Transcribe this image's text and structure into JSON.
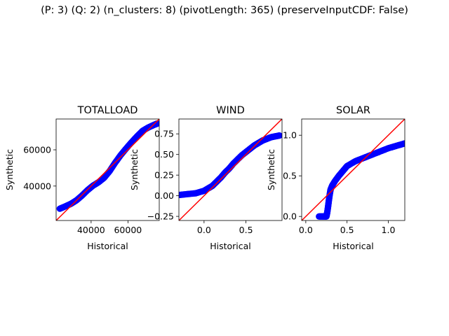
{
  "suptitle": "(P: 3) (Q: 2) (n_clusters: 8) (pivotLength: 365) (preserveInputCDF: False)",
  "colors": {
    "points": "#0000ff",
    "reference_line": "#ff0000",
    "axes": "#000000"
  },
  "chart_data": [
    {
      "type": "scatter",
      "title": "TOTALLOAD",
      "xlabel": "Historical",
      "ylabel": "Synthetic",
      "xlim": [
        21000,
        77000
      ],
      "ylim": [
        21000,
        77000
      ],
      "xticks": [
        40000,
        60000
      ],
      "xtick_labels": [
        "40000",
        "60000"
      ],
      "yticks": [
        40000,
        60000
      ],
      "ytick_labels": [
        "40000",
        "60000"
      ],
      "reference_line": "y = x",
      "qq_points": [
        [
          23000,
          27500
        ],
        [
          26000,
          28800
        ],
        [
          29000,
          30200
        ],
        [
          32000,
          32100
        ],
        [
          35000,
          34700
        ],
        [
          38000,
          37700
        ],
        [
          41000,
          40200
        ],
        [
          44000,
          42100
        ],
        [
          47000,
          44500
        ],
        [
          50000,
          48200
        ],
        [
          53000,
          52800
        ],
        [
          56000,
          57000
        ],
        [
          59000,
          60700
        ],
        [
          62000,
          64200
        ],
        [
          65000,
          67500
        ],
        [
          68000,
          70500
        ],
        [
          71000,
          72300
        ],
        [
          74000,
          73700
        ],
        [
          76000,
          74500
        ]
      ]
    },
    {
      "type": "scatter",
      "title": "WIND",
      "xlabel": "Historical",
      "ylabel": "Synthetic",
      "xlim": [
        -0.3,
        0.93
      ],
      "ylim": [
        -0.3,
        0.93
      ],
      "xticks": [
        0.0,
        0.5
      ],
      "xtick_labels": [
        "0.0",
        "0.5"
      ],
      "yticks": [
        -0.25,
        0.0,
        0.25,
        0.5,
        0.75
      ],
      "ytick_labels": [
        "−0.25",
        "0.00",
        "0.25",
        "0.50",
        "0.75"
      ],
      "reference_line": "y = x",
      "qq_points": [
        [
          -0.29,
          0.01
        ],
        [
          -0.2,
          0.02
        ],
        [
          -0.1,
          0.03
        ],
        [
          0.0,
          0.06
        ],
        [
          0.05,
          0.09
        ],
        [
          0.1,
          0.12
        ],
        [
          0.15,
          0.17
        ],
        [
          0.2,
          0.22
        ],
        [
          0.25,
          0.28
        ],
        [
          0.3,
          0.33
        ],
        [
          0.35,
          0.39
        ],
        [
          0.4,
          0.44
        ],
        [
          0.45,
          0.49
        ],
        [
          0.5,
          0.53
        ],
        [
          0.55,
          0.57
        ],
        [
          0.6,
          0.61
        ],
        [
          0.65,
          0.64
        ],
        [
          0.7,
          0.67
        ],
        [
          0.75,
          0.69
        ],
        [
          0.8,
          0.71
        ],
        [
          0.85,
          0.72
        ],
        [
          0.9,
          0.73
        ]
      ]
    },
    {
      "type": "scatter",
      "title": "SOLAR",
      "xlabel": "Historical",
      "ylabel": "Synthetic",
      "xlim": [
        -0.05,
        1.2
      ],
      "ylim": [
        -0.05,
        1.2
      ],
      "xticks": [
        0.0,
        0.5,
        1.0
      ],
      "xtick_labels": [
        "0.0",
        "0.5",
        "1.0"
      ],
      "yticks": [
        0.0,
        0.5,
        1.0
      ],
      "ytick_labels": [
        "0.0",
        "0.5",
        "1.0"
      ],
      "reference_line": "y = x",
      "qq_points": [
        [
          0.16,
          0.0
        ],
        [
          0.2,
          0.0
        ],
        [
          0.23,
          0.0
        ],
        [
          0.25,
          0.0
        ],
        [
          0.26,
          0.05
        ],
        [
          0.27,
          0.12
        ],
        [
          0.28,
          0.2
        ],
        [
          0.29,
          0.27
        ],
        [
          0.3,
          0.33
        ],
        [
          0.32,
          0.38
        ],
        [
          0.35,
          0.43
        ],
        [
          0.4,
          0.5
        ],
        [
          0.45,
          0.56
        ],
        [
          0.5,
          0.62
        ],
        [
          0.6,
          0.68
        ],
        [
          0.7,
          0.72
        ],
        [
          0.8,
          0.76
        ],
        [
          0.9,
          0.8
        ],
        [
          1.0,
          0.84
        ],
        [
          1.1,
          0.87
        ],
        [
          1.2,
          0.9
        ]
      ]
    }
  ]
}
